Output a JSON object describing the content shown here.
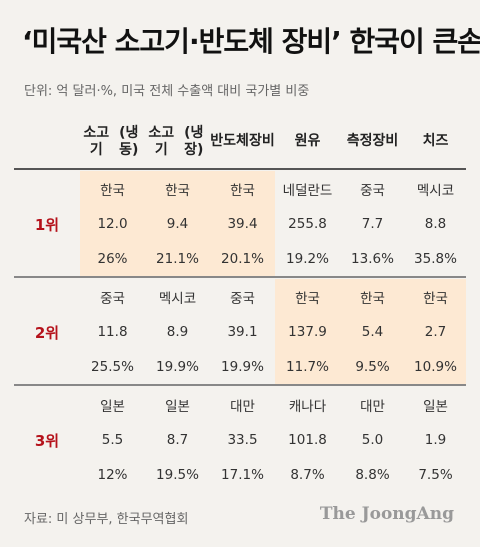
{
  "title": "‘미국산 소고기·반도체 장비’ 한국이 큰손",
  "subtitle": "단위: 억 달러·%, 미국 전체 수출액 대비 국가별 비중",
  "source": "자료: 미 상무부, 한국무역협회",
  "logo": "The JoongAng",
  "colors": {
    "highlight": "#fde9d3",
    "rank": "#b5121b"
  },
  "chart_data": {
    "type": "table",
    "columns": [
      "소고기 (냉동)",
      "소고기 (냉장)",
      "반도체 장비",
      "원유",
      "측정 장비",
      "치즈"
    ],
    "column_lines": [
      [
        "소고기",
        "(냉동)"
      ],
      [
        "소고기",
        "(냉장)"
      ],
      [
        "반도체",
        "장비"
      ],
      [
        "원유"
      ],
      [
        "측정",
        "장비"
      ],
      [
        "치즈"
      ]
    ],
    "ranks": [
      {
        "rank": "1위",
        "countries": [
          "한국",
          "한국",
          "한국",
          "네덜란드",
          "중국",
          "멕시코"
        ],
        "values": [
          "12.0",
          "9.4",
          "39.4",
          "255.8",
          "7.7",
          "8.8"
        ],
        "shares": [
          "26%",
          "21.1%",
          "20.1%",
          "19.2%",
          "13.6%",
          "35.8%"
        ]
      },
      {
        "rank": "2위",
        "countries": [
          "중국",
          "멕시코",
          "중국",
          "한국",
          "한국",
          "한국"
        ],
        "values": [
          "11.8",
          "8.9",
          "39.1",
          "137.9",
          "5.4",
          "2.7"
        ],
        "shares": [
          "25.5%",
          "19.9%",
          "19.9%",
          "11.7%",
          "9.5%",
          "10.9%"
        ]
      },
      {
        "rank": "3위",
        "countries": [
          "일본",
          "일본",
          "대만",
          "캐나다",
          "대만",
          "일본"
        ],
        "values": [
          "5.5",
          "8.7",
          "33.5",
          "101.8",
          "5.0",
          "1.9"
        ],
        "shares": [
          "12%",
          "19.5%",
          "17.1%",
          "8.7%",
          "8.8%",
          "7.5%"
        ]
      }
    ]
  }
}
